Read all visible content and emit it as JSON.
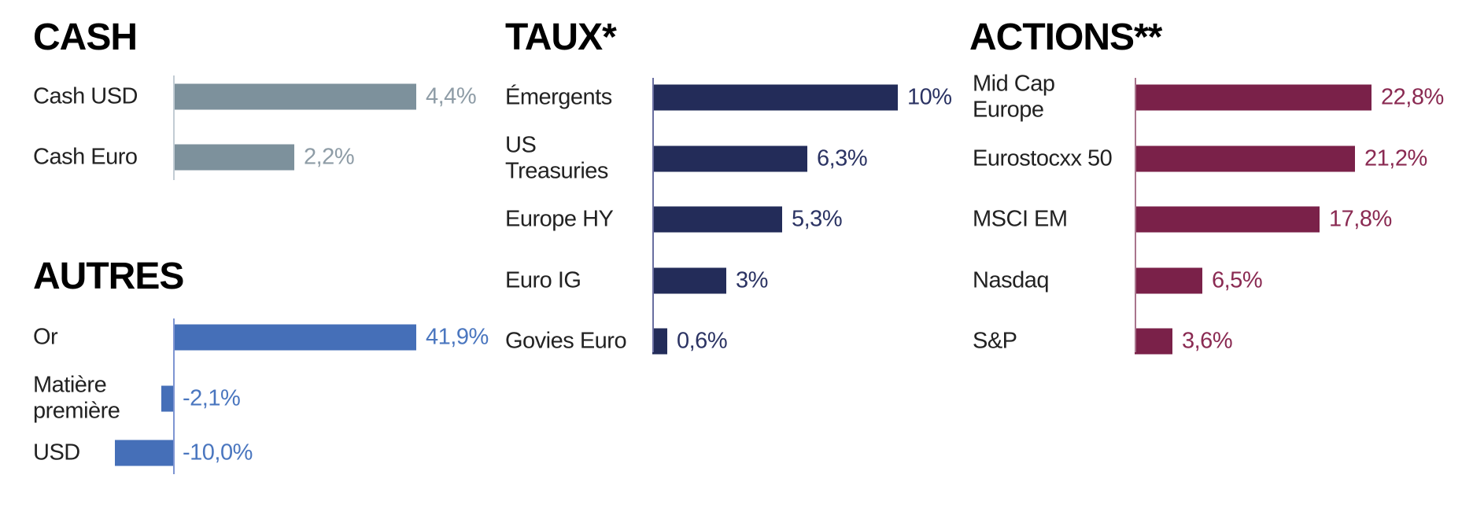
{
  "chart_data": [
    {
      "id": "cash",
      "type": "bar",
      "orientation": "horizontal",
      "title": "CASH",
      "categories": [
        "Cash USD",
        "Cash Euro"
      ],
      "values": [
        4.4,
        2.2
      ],
      "value_labels": [
        "4,4%",
        "2,2%"
      ],
      "unit": "%",
      "xlim": [
        0,
        4.4
      ],
      "grid": false,
      "legend": false,
      "bar_color": "#7D919C",
      "value_color": "#8E9CA6",
      "axis_color": "#C2CCD4",
      "label_color": "#222222",
      "title_color": "#000000"
    },
    {
      "id": "taux",
      "type": "bar",
      "orientation": "horizontal",
      "title": "TAUX*",
      "categories": [
        "Émergents",
        "US Treasuries",
        "Europe HY",
        "Euro IG",
        "Govies Euro"
      ],
      "values": [
        10,
        6.3,
        5.3,
        3,
        0.6
      ],
      "value_labels": [
        "10%",
        "6,3%",
        "5,3%",
        "3%",
        "0,6%"
      ],
      "unit": "%",
      "xlim": [
        0,
        10
      ],
      "grid": false,
      "legend": false,
      "bar_color": "#232C59",
      "value_color": "#2B3363",
      "axis_color": "#696EA0",
      "label_color": "#222222",
      "title_color": "#000000"
    },
    {
      "id": "actions",
      "type": "bar",
      "orientation": "horizontal",
      "title": "ACTIONS**",
      "categories": [
        "Mid Cap Europe",
        "Eurostocxx 50",
        "MSCI EM",
        "Nasdaq",
        "S&P"
      ],
      "values": [
        22.8,
        21.2,
        17.8,
        6.5,
        3.6
      ],
      "value_labels": [
        "22,8%",
        "21,2%",
        "17,8%",
        "6,5%",
        "3,6%"
      ],
      "unit": "%",
      "xlim": [
        0,
        22.8
      ],
      "grid": false,
      "legend": false,
      "bar_color": "#7A2149",
      "value_color": "#8A2A52",
      "axis_color": "#A9758D",
      "label_color": "#222222",
      "title_color": "#000000"
    },
    {
      "id": "autres",
      "type": "bar",
      "orientation": "horizontal",
      "title": "AUTRES",
      "categories": [
        "Or",
        "Matière première",
        "USD"
      ],
      "values": [
        41.9,
        -2.1,
        -10.0
      ],
      "value_labels": [
        "41,9%",
        "-2,1%",
        "-10,0%"
      ],
      "unit": "%",
      "xlim": [
        -10,
        41.9
      ],
      "grid": false,
      "legend": false,
      "bar_color": "#456FB8",
      "value_color": "#4A76BF",
      "axis_color": "#7E95D2",
      "label_color": "#222222",
      "title_color": "#000000"
    }
  ]
}
